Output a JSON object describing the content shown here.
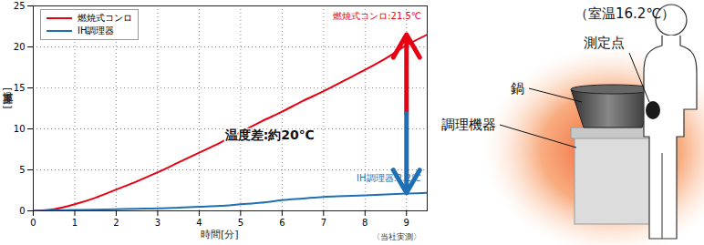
{
  "chart_data": {
    "type": "line",
    "x_label": "時間[分]",
    "y_label": "温度上昇[℃]",
    "x": [
      0,
      0.5,
      1,
      1.5,
      2,
      2.5,
      3,
      3.5,
      4,
      4.5,
      5,
      5.5,
      6,
      6.5,
      7,
      7.5,
      8,
      8.5,
      9,
      9.5
    ],
    "series": [
      {
        "name": "燃焼式コンロ",
        "color": "#e60012",
        "values": [
          0,
          0.2,
          0.8,
          1.6,
          2.6,
          3.6,
          4.7,
          5.9,
          7.1,
          8.3,
          9.6,
          10.9,
          12.1,
          13.4,
          14.6,
          15.9,
          17.2,
          18.6,
          20.2,
          21.5
        ]
      },
      {
        "name": "IH調理器",
        "color": "#1f6fb4",
        "values": [
          0,
          0.05,
          0.1,
          0.15,
          0.2,
          0.25,
          0.3,
          0.4,
          0.5,
          0.6,
          0.8,
          1.0,
          1.3,
          1.5,
          1.7,
          1.8,
          1.9,
          2.0,
          2.1,
          2.2
        ]
      }
    ],
    "xlim": [
      0,
      9.5
    ],
    "xticks": [
      0,
      1,
      2,
      3,
      4,
      5,
      6,
      7,
      8,
      9
    ],
    "ylim": [
      0,
      25
    ],
    "yticks": [
      0,
      5,
      10,
      15,
      20,
      25
    ],
    "grid": true,
    "legend": "upper left",
    "annotations": [
      "燃焼式コンロ:21.5℃",
      "IH調理器:2.2℃",
      "温度差:約20℃"
    ],
    "source": "〈当社実測〉"
  },
  "diagram": {
    "room_temperature": "（室温16.2℃）",
    "labels": [
      "測定点",
      "鍋",
      "調理機器"
    ]
  }
}
